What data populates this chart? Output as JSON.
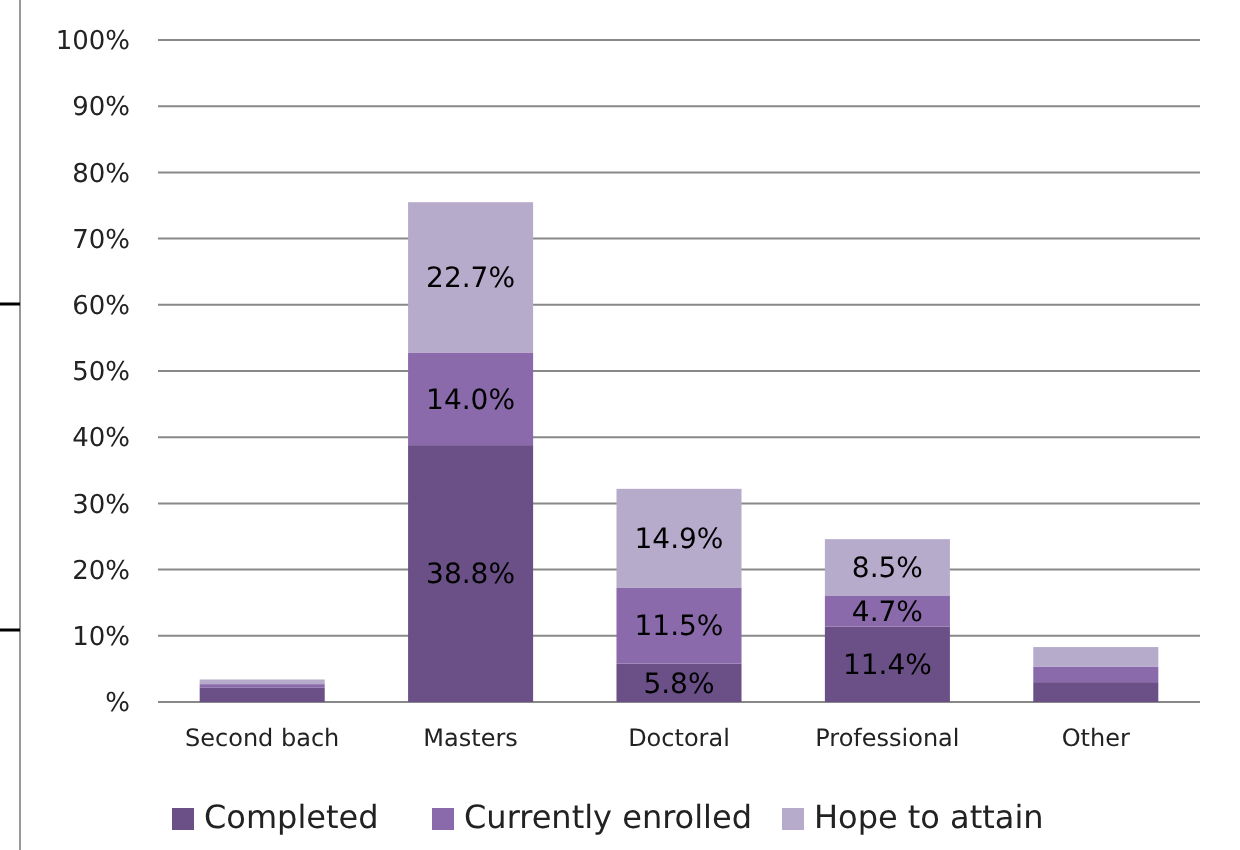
{
  "chart_data": {
    "type": "bar",
    "stacked": true,
    "categories": [
      "Second bach",
      "Masters",
      "Doctoral",
      "Professional",
      "Other"
    ],
    "series": [
      {
        "name": "Completed",
        "color": "#6b5088",
        "values": [
          2.2,
          38.8,
          5.8,
          11.4,
          3.0
        ],
        "value_labels": [
          null,
          "38.8%",
          "5.8%",
          "11.4%",
          null
        ]
      },
      {
        "name": "Currently enrolled",
        "color": "#8a6aab",
        "values": [
          0.5,
          14.0,
          11.5,
          4.7,
          2.3
        ],
        "value_labels": [
          null,
          "14.0%",
          "11.5%",
          "4.7%",
          null
        ]
      },
      {
        "name": "Hope to attain",
        "color": "#b7abcc",
        "values": [
          0.7,
          22.7,
          14.9,
          8.5,
          3.0
        ],
        "value_labels": [
          null,
          "22.7%",
          "14.9%",
          "8.5%",
          null
        ]
      }
    ],
    "ylim": [
      0,
      100
    ],
    "yticks": [
      {
        "value": 0,
        "label": "%"
      },
      {
        "value": 10,
        "label": "10%"
      },
      {
        "value": 20,
        "label": "20%"
      },
      {
        "value": 30,
        "label": "30%"
      },
      {
        "value": 40,
        "label": "40%"
      },
      {
        "value": 50,
        "label": "50%"
      },
      {
        "value": 60,
        "label": "60%"
      },
      {
        "value": 70,
        "label": "70%"
      },
      {
        "value": 80,
        "label": "80%"
      },
      {
        "value": 90,
        "label": "90%"
      },
      {
        "value": 100,
        "label": "100%"
      }
    ],
    "grid": "y",
    "legend": "bottom"
  }
}
